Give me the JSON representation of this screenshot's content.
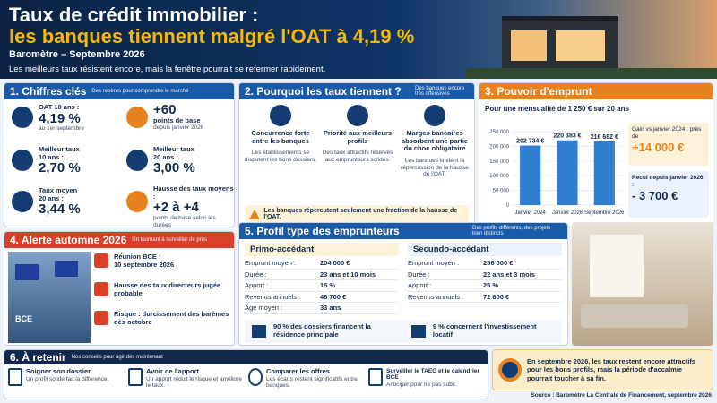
{
  "header": {
    "title_line1": "Taux de crédit immobilier :",
    "title_line2": "les banques tiennent malgré l'OAT à 4,19 %",
    "subtitle": "Baromètre – Septembre 2026",
    "tagline": "Les meilleurs taux résistent encore, mais la fenêtre pourrait se refermer rapidement."
  },
  "key_figures": {
    "title": "1. Chiffres clés",
    "note": "Des repères pour comprendre le marché",
    "items": [
      {
        "label": "OAT 10 ans :",
        "value": "4,19 %",
        "detail": "au 1er septembre"
      },
      {
        "value": "+60",
        "label": "points de base",
        "detail": "depuis janvier 2026"
      },
      {
        "label": "Meilleur taux 10 ans :",
        "value": "2,70 %"
      },
      {
        "label": "Meilleur taux 20 ans :",
        "value": "3,00 %"
      },
      {
        "label": "Taux moyen 20 ans :",
        "value": "3,44 %"
      },
      {
        "label": "Hausse des taux moyens :",
        "value": "+2 à +4",
        "detail": "points de base selon les durées"
      }
    ]
  },
  "reasons": {
    "title": "2. Pourquoi les taux tiennent ?",
    "note": "Des banques encore très offensives",
    "items": [
      {
        "title": "Concurrence forte entre les banques",
        "text": "Les établissements se disputent les bons dossiers."
      },
      {
        "title": "Priorité aux meilleurs profils",
        "text": "Des taux attractifs réservés aux emprunteurs solides."
      },
      {
        "title": "Marges bancaires absorbent une partie du choc obligataire",
        "text": "Les banques limitent la répercussion de la hausse de l'OAT."
      }
    ],
    "footer": "Les banques répercutent seulement une fraction de la hausse de l'OAT."
  },
  "borrowing": {
    "title": "3. Pouvoir d'emprunt",
    "gain": {
      "label": "Gain vs janvier 2024 : près de",
      "value": "+14 000 €"
    },
    "decline": {
      "label": "Recul depuis janvier 2026 :",
      "value": "- 3 700 €"
    }
  },
  "chart_data": {
    "type": "bar",
    "title": "Pour une mensualité de 1 250 € sur 20 ans",
    "categories": [
      "Janvier 2024",
      "Janvier 2026",
      "Septembre 2026"
    ],
    "values": [
      202734,
      220383,
      216682
    ],
    "value_labels": [
      "202 734 €",
      "220 383 €",
      "216 682 €"
    ],
    "color": "#2f7fd3",
    "ylim": [
      0,
      250000
    ],
    "yticks": [
      0,
      {
        "value": 50000,
        "label": "50 000"
      },
      {
        "value": 100000,
        "label": "100 000"
      },
      {
        "value": 150000,
        "label": "150 000"
      },
      {
        "value": 200000,
        "label": "200 000"
      },
      {
        "value": 250000,
        "label": "250 000"
      }
    ],
    "grid": true
  },
  "alert": {
    "title": "4. Alerte automne 2026",
    "note": "Un tournant à surveiller de près",
    "photo_label": "BCE",
    "items": [
      {
        "label": "Réunion BCE :",
        "value": "10 septembre 2026"
      },
      {
        "label": "Hausse des taux directeurs jugée probable"
      },
      {
        "label": "Risque : durcissement des barèmes dès octobre"
      }
    ]
  },
  "profiles": {
    "title": "5. Profil type des emprunteurs",
    "note": "Des profils différents, des projets bien distincts",
    "groups": [
      {
        "name": "Primo-accédant",
        "rows": [
          [
            "Emprunt moyen :",
            "204 000 €"
          ],
          [
            "Durée :",
            "23 ans et 10 mois"
          ],
          [
            "Apport :",
            "15 %"
          ],
          [
            "Revenus annuels :",
            "46 700 €"
          ],
          [
            "Âge moyen :",
            "33 ans"
          ]
        ]
      },
      {
        "name": "Secundo-accédant",
        "rows": [
          [
            "Emprunt moyen :",
            "256 000 €"
          ],
          [
            "Durée :",
            "22 ans et 3 mois"
          ],
          [
            "Apport :",
            "25 %"
          ],
          [
            "Revenus annuels :",
            "72 600 €"
          ]
        ]
      }
    ],
    "stats": [
      "90 % des dossiers financent la résidence principale",
      "9 % concernent l'investissement locatif"
    ]
  },
  "tips": {
    "title": "6. À retenir",
    "note": "Nos conseils pour agir dès maintenant",
    "items": [
      {
        "title": "Soigner son dossier",
        "text": "Un profil solide fait la différence."
      },
      {
        "title": "Avoir de l'apport",
        "text": "Un apport réduit le risque et améliore le taux."
      },
      {
        "title": "Comparer les offres",
        "text": "Les écarts restent significatifs entre banques."
      },
      {
        "title": "Surveiller le TAEG et le calendrier BCE",
        "text": "Anticiper pour ne pas subir."
      }
    ]
  },
  "conclusion": "En septembre 2026, les taux restent encore attractifs pour les bons profils, mais la période d'accalmie pourrait toucher à sa fin.",
  "source": "Source : Baromètre La Centrale de Financement, septembre 2026"
}
